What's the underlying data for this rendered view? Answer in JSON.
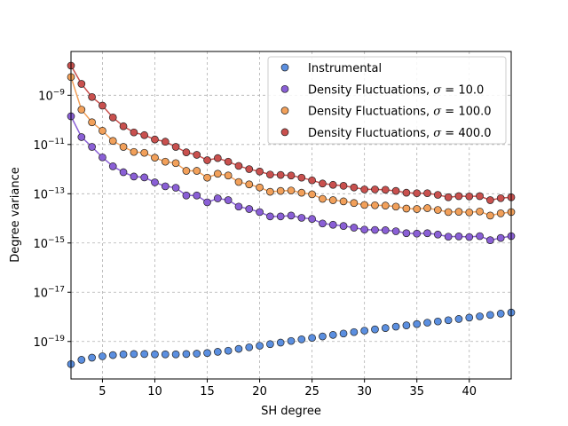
{
  "chart_data": {
    "type": "scatter",
    "xlabel": "SH degree",
    "ylabel": "Degree variance",
    "xlim": [
      2,
      44
    ],
    "ylim": [
      3e-21,
      6e-08
    ],
    "yscale": "log",
    "grid": true,
    "legend_position": "top-right",
    "x_ticks": [
      5,
      10,
      15,
      20,
      25,
      30,
      35,
      40
    ],
    "y_ticks": [
      1e-19,
      1e-17,
      1e-15,
      1e-13,
      1e-11,
      1e-09
    ],
    "y_tick_labels": [
      {
        "base": "10",
        "exp": "−19"
      },
      {
        "base": "10",
        "exp": "−17"
      },
      {
        "base": "10",
        "exp": "−15"
      },
      {
        "base": "10",
        "exp": "−13"
      },
      {
        "base": "10",
        "exp": "−11"
      },
      {
        "base": "10",
        "exp": "−9"
      }
    ],
    "series": [
      {
        "name": "Instrumental",
        "color": "#5b8fe0",
        "line": false,
        "x": [
          2,
          3,
          4,
          5,
          6,
          7,
          8,
          9,
          10,
          11,
          12,
          13,
          14,
          15,
          16,
          17,
          18,
          19,
          20,
          21,
          22,
          23,
          24,
          25,
          26,
          27,
          28,
          29,
          30,
          31,
          32,
          33,
          34,
          35,
          36,
          37,
          38,
          39,
          40,
          41,
          42,
          43,
          44
        ],
        "y": [
          1.2e-20,
          1.8e-20,
          2.2e-20,
          2.5e-20,
          2.8e-20,
          3e-20,
          3.1e-20,
          3.1e-20,
          3e-20,
          3e-20,
          3e-20,
          3.1e-20,
          3.2e-20,
          3.4e-20,
          3.8e-20,
          4.2e-20,
          5e-20,
          5.8e-20,
          6.7e-20,
          7.8e-20,
          9e-20,
          1.05e-19,
          1.22e-19,
          1.4e-19,
          1.6e-19,
          1.85e-19,
          2.1e-19,
          2.4e-19,
          2.75e-19,
          3.1e-19,
          3.5e-19,
          4e-19,
          4.5e-19,
          5.1e-19,
          5.8e-19,
          6.5e-19,
          7.3e-19,
          8.2e-19,
          9.3e-19,
          1.05e-18,
          1.2e-18,
          1.35e-18,
          1.5e-18
        ]
      },
      {
        "name": "Density Fluctuations, $\\sigma = 10.0$",
        "label_main": "Density Fluctuations, ",
        "label_symbol": "σ",
        "label_value": " = 10.0",
        "color": "#8a5fd6",
        "line": true,
        "x": [
          2,
          3,
          4,
          5,
          6,
          7,
          8,
          9,
          10,
          11,
          12,
          13,
          14,
          15,
          16,
          17,
          18,
          19,
          20,
          21,
          22,
          23,
          24,
          25,
          26,
          27,
          28,
          29,
          30,
          31,
          32,
          33,
          34,
          35,
          36,
          37,
          38,
          39,
          40,
          41,
          42,
          43,
          44
        ],
        "y": [
          1.4e-10,
          2e-11,
          8e-12,
          3e-12,
          1.3e-12,
          7.5e-13,
          5e-13,
          4.6e-13,
          2.9e-13,
          2e-13,
          1.75e-13,
          8.5e-14,
          8.5e-14,
          4.5e-14,
          6.5e-14,
          5.5e-14,
          3e-14,
          2.4e-14,
          1.8e-14,
          1.2e-14,
          1.2e-14,
          1.3e-14,
          1.05e-14,
          9.5e-15,
          6.2e-15,
          5.5e-15,
          4.9e-15,
          4.2e-15,
          3.5e-15,
          3.4e-15,
          3.3e-15,
          3e-15,
          2.5e-15,
          2.4e-15,
          2.5e-15,
          2.2e-15,
          1.8e-15,
          1.85e-15,
          1.75e-15,
          1.9e-15,
          1.3e-15,
          1.6e-15,
          1.9e-15
        ]
      },
      {
        "name": "Density Fluctuations, $\\sigma = 100.0$",
        "label_main": "Density Fluctuations, ",
        "label_symbol": "σ",
        "label_value": " = 100.0",
        "color": "#f2a05a",
        "line": true,
        "x": [
          2,
          3,
          4,
          5,
          6,
          7,
          8,
          9,
          10,
          11,
          12,
          13,
          14,
          15,
          16,
          17,
          18,
          19,
          20,
          21,
          22,
          23,
          24,
          25,
          26,
          27,
          28,
          29,
          30,
          31,
          32,
          33,
          34,
          35,
          36,
          37,
          38,
          39,
          40,
          41,
          42,
          43,
          44
        ],
        "y": [
          5.5e-09,
          2.6e-10,
          8e-11,
          3.6e-11,
          1.4e-11,
          8e-12,
          5e-12,
          4.6e-12,
          2.9e-12,
          2e-12,
          1.75e-12,
          8.5e-13,
          8.5e-13,
          4.5e-13,
          6.5e-13,
          5.5e-13,
          3e-13,
          2.4e-13,
          1.8e-13,
          1.2e-13,
          1.3e-13,
          1.35e-13,
          1.1e-13,
          9.5e-14,
          6.2e-14,
          5.5e-14,
          4.9e-14,
          4.2e-14,
          3.5e-14,
          3.4e-14,
          3.3e-14,
          3e-14,
          2.5e-14,
          2.4e-14,
          2.6e-14,
          2.2e-14,
          1.8e-14,
          1.85e-14,
          1.75e-14,
          1.9e-14,
          1.3e-14,
          1.6e-14,
          1.8e-14
        ]
      },
      {
        "name": "Density Fluctuations, $\\sigma = 400.0$",
        "label_main": "Density Fluctuations, ",
        "label_symbol": "σ",
        "label_value": " = 400.0",
        "color": "#c9504e",
        "line": true,
        "x": [
          2,
          3,
          4,
          5,
          6,
          7,
          8,
          9,
          10,
          11,
          12,
          13,
          14,
          15,
          16,
          17,
          18,
          19,
          20,
          21,
          22,
          23,
          24,
          25,
          26,
          27,
          28,
          29,
          30,
          31,
          32,
          33,
          34,
          35,
          36,
          37,
          38,
          39,
          40,
          41,
          42,
          43,
          44
        ],
        "y": [
          1.6e-08,
          2.9e-09,
          8.5e-10,
          3.8e-10,
          1.25e-10,
          5.5e-11,
          3.1e-11,
          2.4e-11,
          1.6e-11,
          1.3e-11,
          8e-12,
          4.8e-12,
          3.8e-12,
          2.3e-12,
          2.8e-12,
          2e-12,
          1.35e-12,
          1e-12,
          8e-13,
          6e-13,
          5.8e-13,
          5.5e-13,
          4.5e-13,
          3.5e-13,
          2.6e-13,
          2.3e-13,
          2.1e-13,
          1.8e-13,
          1.5e-13,
          1.5e-13,
          1.45e-13,
          1.3e-13,
          1.1e-13,
          1.05e-13,
          1.05e-13,
          9e-14,
          7.2e-14,
          8e-14,
          7.8e-14,
          8e-14,
          5.5e-14,
          6.6e-14,
          7.2e-14
        ]
      }
    ]
  }
}
